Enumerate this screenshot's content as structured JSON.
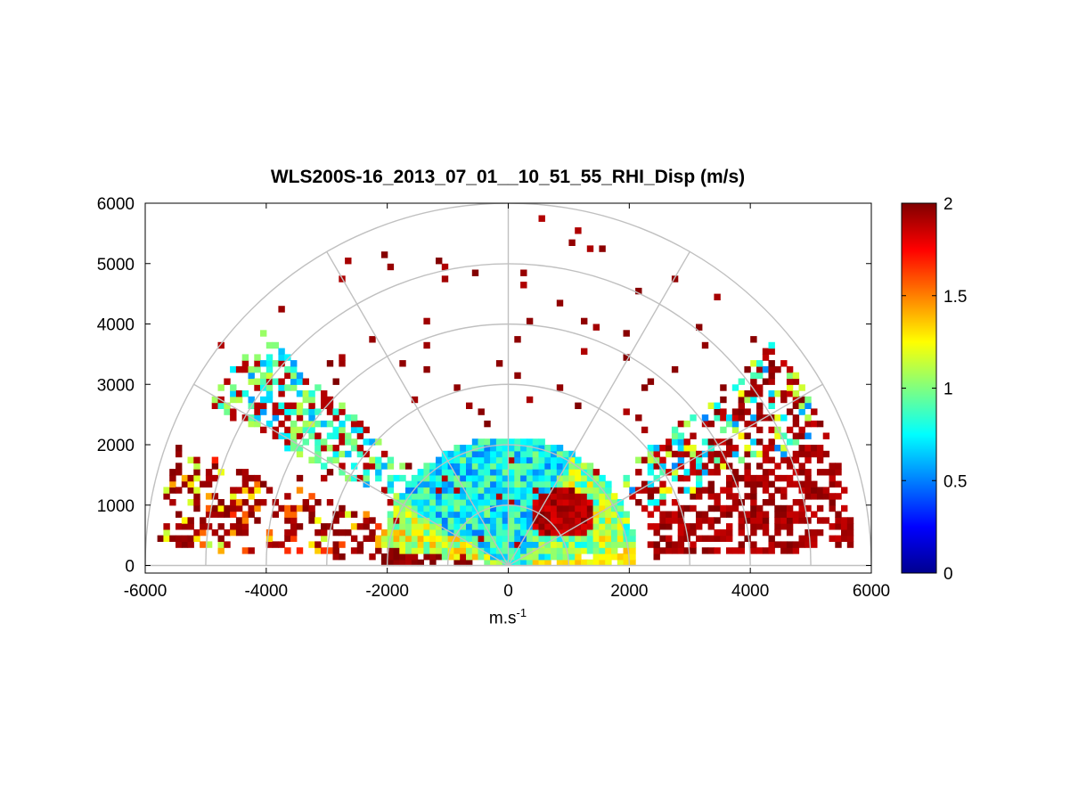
{
  "chart_data": {
    "type": "heatmap",
    "subtype": "polar-rhi-sector",
    "title": "WLS200S-16_2013_07_01__10_51_55_RHI_Disp (m/s)",
    "xlabel": "m.s",
    "xlabel_sup": "-1",
    "ylabel": "",
    "xlim": [
      -6000,
      6000
    ],
    "ylim": [
      0,
      6000
    ],
    "xticks": [
      -6000,
      -4000,
      -2000,
      0,
      2000,
      4000,
      6000
    ],
    "yticks": [
      0,
      1000,
      2000,
      3000,
      4000,
      5000,
      6000
    ],
    "xtick_labels": [
      "-6000",
      "-4000",
      "-2000",
      "0",
      "2000",
      "4000",
      "6000"
    ],
    "ytick_labels": [
      "0",
      "1000",
      "2000",
      "3000",
      "4000",
      "5000",
      "6000"
    ],
    "grid": "polar",
    "range_rings": [
      1000,
      2000,
      3000,
      4000,
      5000,
      6000
    ],
    "spokes_deg": [
      0,
      30,
      60,
      90,
      120,
      150,
      180
    ],
    "colorbar": {
      "colormap": "jet",
      "limits": [
        0,
        2
      ],
      "ticks": [
        0,
        0.5,
        1,
        1.5,
        2
      ],
      "tick_labels": [
        "0",
        "0.5",
        "1",
        "1.5",
        "2"
      ]
    },
    "cell_size_m": [
      100,
      100
    ],
    "regions": [
      {
        "note": "near-field cone",
        "r": [
          0,
          2150
        ],
        "elev_deg": [
          8,
          172
        ],
        "value_mean": 0.8,
        "value_spread": 0.5
      },
      {
        "note": "core maximum",
        "x": [
          400,
          1400
        ],
        "y": [
          500,
          1300
        ],
        "value_mean": 1.95
      },
      {
        "note": "right low-elevation sector",
        "r": [
          2300,
          5700
        ],
        "elev_deg": [
          3,
          40
        ],
        "value_mean": 1.5
      },
      {
        "note": "left low-elevation sector",
        "r": [
          2000,
          5800
        ],
        "elev_deg": [
          160,
          177
        ],
        "value_mean": 1.6
      },
      {
        "note": "left mid-elevation sector",
        "r": [
          2000,
          5400
        ],
        "elev_deg": [
          136,
          152
        ],
        "value_mean": 1.1
      },
      {
        "note": "scattered far returns",
        "r": [
          2500,
          6000
        ],
        "elev_deg": [
          20,
          160
        ],
        "value_mean": 2.0
      }
    ]
  }
}
